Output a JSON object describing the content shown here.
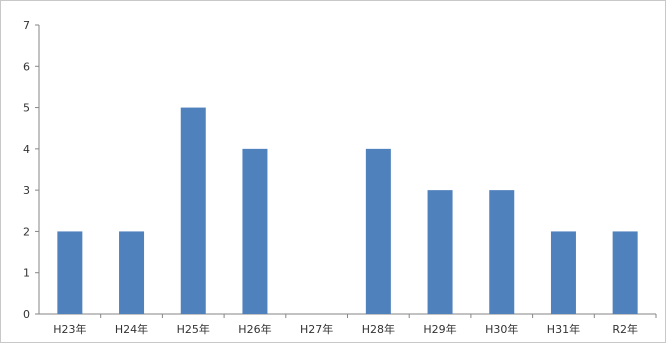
{
  "chart_data": {
    "type": "bar",
    "title": "",
    "xlabel": "",
    "ylabel": "",
    "categories": [
      "H23年",
      "H24年",
      "H25年",
      "H26年",
      "H27年",
      "H28年",
      "H29年",
      "H30年",
      "H31年",
      "R2年"
    ],
    "values": [
      2,
      2,
      5,
      4,
      0,
      4,
      3,
      3,
      2,
      2
    ],
    "ylim": [
      0,
      7
    ],
    "yticks": [
      "0",
      "1",
      "2",
      "3",
      "4",
      "5",
      "6",
      "7"
    ],
    "grid": false,
    "legend": "none",
    "bar_color": "#4f81bd",
    "axis_color": "#868686"
  }
}
